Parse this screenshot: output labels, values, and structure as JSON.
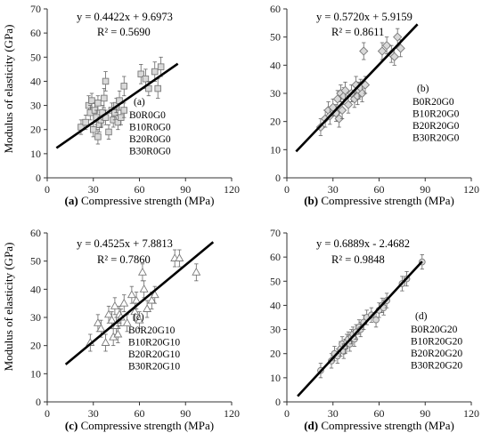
{
  "y_axis_label": "Modulus of elasticity (GPa)",
  "chart_data": [
    {
      "type": "scatter",
      "panel": "(a)",
      "caption_letter": "(a)",
      "caption_text": "Compressive strength (MPa)",
      "xlim": [
        0,
        120
      ],
      "ylim": [
        0,
        70
      ],
      "xticks": [
        "0",
        "30",
        "60",
        "90",
        "120"
      ],
      "yticks": [
        "0",
        "10",
        "20",
        "30",
        "40",
        "50",
        "60",
        "70"
      ],
      "equation": "y = 0.4422x + 9.6973",
      "r2": "R² = 0.5690",
      "legend": [
        "B0R0G0",
        "B10R0G0",
        "B20R0G0",
        "B30R0G0"
      ],
      "marker": "square",
      "fit": {
        "slope": 0.4422,
        "intercept": 9.6973,
        "x_range": [
          6,
          85
        ]
      },
      "x": [
        22,
        25,
        27,
        28,
        29,
        30,
        31,
        32,
        33,
        33,
        34,
        35,
        36,
        37,
        38,
        38,
        40,
        42,
        43,
        44,
        45,
        46,
        47,
        48,
        50,
        50,
        61,
        64,
        66,
        70,
        72,
        74
      ],
      "y": [
        21,
        23,
        30,
        27,
        32,
        20,
        28,
        25,
        31,
        17,
        22,
        24,
        27,
        33,
        40,
        25,
        19,
        28,
        24,
        27,
        30,
        23,
        32,
        25,
        38,
        28,
        43,
        41,
        37,
        44,
        37,
        46
      ],
      "err": [
        3,
        3,
        4,
        3,
        3,
        3,
        3,
        3,
        3,
        3,
        3,
        3,
        3,
        4,
        4,
        3,
        3,
        3,
        3,
        3,
        3,
        3,
        4,
        3,
        4,
        3,
        4,
        4,
        3,
        4,
        4,
        4
      ]
    },
    {
      "type": "scatter",
      "panel": "(b)",
      "caption_letter": "(b)",
      "caption_text": "Compressive strength (MPa)",
      "xlim": [
        0,
        120
      ],
      "ylim": [
        0,
        60
      ],
      "xticks": [
        "0",
        "30",
        "60",
        "90",
        "120"
      ],
      "yticks": [
        "0",
        "10",
        "20",
        "30",
        "40",
        "50",
        "60"
      ],
      "equation": "y = 0.5720x + 5.9159",
      "r2": "R² = 0.8611",
      "legend": [
        "B0R20G0",
        "B10R20G0",
        "B20R20G0",
        "B30R20G0"
      ],
      "marker": "diamond",
      "fit": {
        "slope": 0.572,
        "intercept": 5.9159,
        "x_range": [
          6,
          85
        ]
      },
      "x": [
        22,
        25,
        27,
        28,
        30,
        32,
        33,
        34,
        35,
        36,
        37,
        38,
        40,
        42,
        44,
        45,
        46,
        47,
        48,
        49,
        50,
        51,
        62,
        65,
        68,
        70,
        72,
        74
      ],
      "y": [
        18,
        21,
        24,
        22,
        25,
        23,
        28,
        21,
        30,
        24,
        29,
        31,
        26,
        30,
        28,
        33,
        29,
        31,
        32,
        30,
        45,
        33,
        45,
        47,
        44,
        43,
        50,
        46
      ],
      "err": [
        3,
        3,
        3,
        3,
        3,
        3,
        3,
        3,
        3,
        3,
        3,
        3,
        3,
        3,
        3,
        3,
        3,
        3,
        3,
        3,
        3,
        3,
        3,
        3,
        3,
        3,
        3,
        3
      ]
    },
    {
      "type": "scatter",
      "panel": "(c)",
      "caption_letter": "(c)",
      "caption_text": "Compressive strength (MPa)",
      "xlim": [
        0,
        120
      ],
      "ylim": [
        0,
        60
      ],
      "xticks": [
        "0",
        "30",
        "60",
        "90",
        "120"
      ],
      "yticks": [
        "0",
        "10",
        "20",
        "30",
        "40",
        "50",
        "60"
      ],
      "equation": "y = 0.4525x + 7.8813",
      "r2": "R² = 0.7860",
      "legend": [
        "B0R20G10",
        "B10R20G10",
        "B20R20G10",
        "B30R20G10"
      ],
      "marker": "triangle",
      "fit": {
        "slope": 0.4525,
        "intercept": 7.8813,
        "x_range": [
          12,
          108
        ]
      },
      "x": [
        28,
        33,
        35,
        38,
        40,
        42,
        43,
        44,
        45,
        46,
        47,
        48,
        50,
        52,
        55,
        57,
        58,
        60,
        62,
        63,
        65,
        68,
        70,
        83,
        86,
        97
      ],
      "y": [
        21,
        28,
        26,
        21,
        31,
        29,
        23,
        34,
        27,
        24,
        31,
        30,
        35,
        28,
        38,
        32,
        36,
        29,
        46,
        40,
        33,
        36,
        38,
        51,
        51,
        46
      ],
      "err": [
        3,
        3,
        3,
        3,
        3,
        3,
        3,
        3,
        3,
        3,
        3,
        3,
        3,
        3,
        3,
        3,
        3,
        3,
        3,
        3,
        3,
        3,
        3,
        3,
        3,
        3
      ]
    },
    {
      "type": "scatter",
      "panel": "(d)",
      "caption_letter": "(d)",
      "caption_text": "Compressive strength (MPa)",
      "xlim": [
        0,
        120
      ],
      "ylim": [
        0,
        70
      ],
      "xticks": [
        "0",
        "30",
        "60",
        "90",
        "120"
      ],
      "yticks": [
        "0",
        "10",
        "20",
        "30",
        "40",
        "50",
        "60",
        "70"
      ],
      "equation": "y = 0.6889x - 2.4682",
      "r2": "R² = 0.9848",
      "legend": [
        "B0R20G20",
        "B10R20G20",
        "B20R20G20",
        "B30R20G20"
      ],
      "marker": "circle",
      "fit": {
        "slope": 0.6889,
        "intercept": -2.4682,
        "x_range": [
          7,
          88
        ]
      },
      "x": [
        22,
        29,
        31,
        33,
        35,
        36,
        37,
        38,
        39,
        40,
        41,
        42,
        43,
        44,
        45,
        47,
        48,
        50,
        52,
        55,
        58,
        60,
        62,
        63,
        65,
        75,
        78,
        88
      ],
      "y": [
        13,
        17,
        20,
        19,
        22,
        24,
        21,
        23,
        25,
        26,
        24,
        27,
        28,
        26,
        29,
        31,
        30,
        33,
        35,
        36,
        34,
        38,
        40,
        39,
        42,
        49,
        51,
        58
      ],
      "err": [
        3,
        3,
        3,
        3,
        3,
        3,
        3,
        3,
        3,
        3,
        3,
        3,
        3,
        3,
        3,
        3,
        3,
        3,
        3,
        3,
        3,
        3,
        3,
        3,
        3,
        3,
        3,
        3
      ]
    }
  ]
}
